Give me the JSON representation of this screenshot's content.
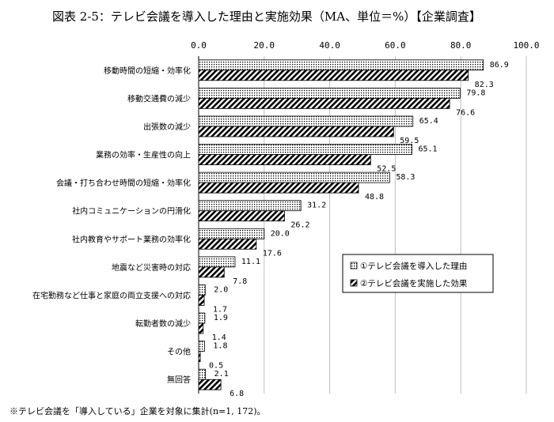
{
  "title": "図表 2-5：テレビ会議を導入した理由と実施効果（MA、単位＝%）【企業調査】",
  "footnote": "※テレビ会議を「導入している」企業を対象に集計(n=1, 172)。",
  "colors": {
    "bar_border": "#000000",
    "background": "#ffffff"
  },
  "chart_data": {
    "type": "bar",
    "orientation": "horizontal",
    "title": "図表 2-5：テレビ会議を導入した理由と実施効果（MA、単位＝%）【企業調査】",
    "xlim": [
      0,
      100
    ],
    "xticks": [
      "0.0",
      "20.0",
      "40.0",
      "60.0",
      "80.0",
      "100.0"
    ],
    "tick_values": [
      0,
      20,
      40,
      60,
      80,
      100
    ],
    "grid": true,
    "legend_position": "right",
    "categories": [
      "移動時間の短縮・効率化",
      "移動交通費の減少",
      "出張数の減少",
      "業務の効率・生産性の向上",
      "会議・打ち合わせ時間の短縮・効率化",
      "社内コミュニケーションの円滑化",
      "社内教育やサポート業務の効率化",
      "地震など災害時の対応",
      "在宅勤務など仕事と家庭の両立支援への対応",
      "転勤者数の減少",
      "その他",
      "無回答"
    ],
    "series": [
      {
        "name": "①テレビ会議を導入した理由",
        "values": [
          86.9,
          79.8,
          65.4,
          65.1,
          58.3,
          31.2,
          20.0,
          11.1,
          2.0,
          1.9,
          1.8,
          2.1
        ],
        "labels": [
          "86.9",
          "79.8",
          "65.4",
          "65.1",
          "58.3",
          "31.2",
          "20.0",
          "11.1",
          "2.0",
          "1.9",
          "1.8",
          "2.1"
        ],
        "pattern": "dots"
      },
      {
        "name": "②テレビ会議を実施した効果",
        "values": [
          82.3,
          76.6,
          59.5,
          52.5,
          48.8,
          26.2,
          17.6,
          7.8,
          1.7,
          1.4,
          0.5,
          6.8
        ],
        "labels": [
          "82.3",
          "76.6",
          "59.5",
          "52.5",
          "48.8",
          "26.2",
          "17.6",
          "7.8",
          "1.7",
          "1.4",
          "0.5",
          "6.8"
        ],
        "pattern": "diagonal-hatch"
      }
    ]
  }
}
